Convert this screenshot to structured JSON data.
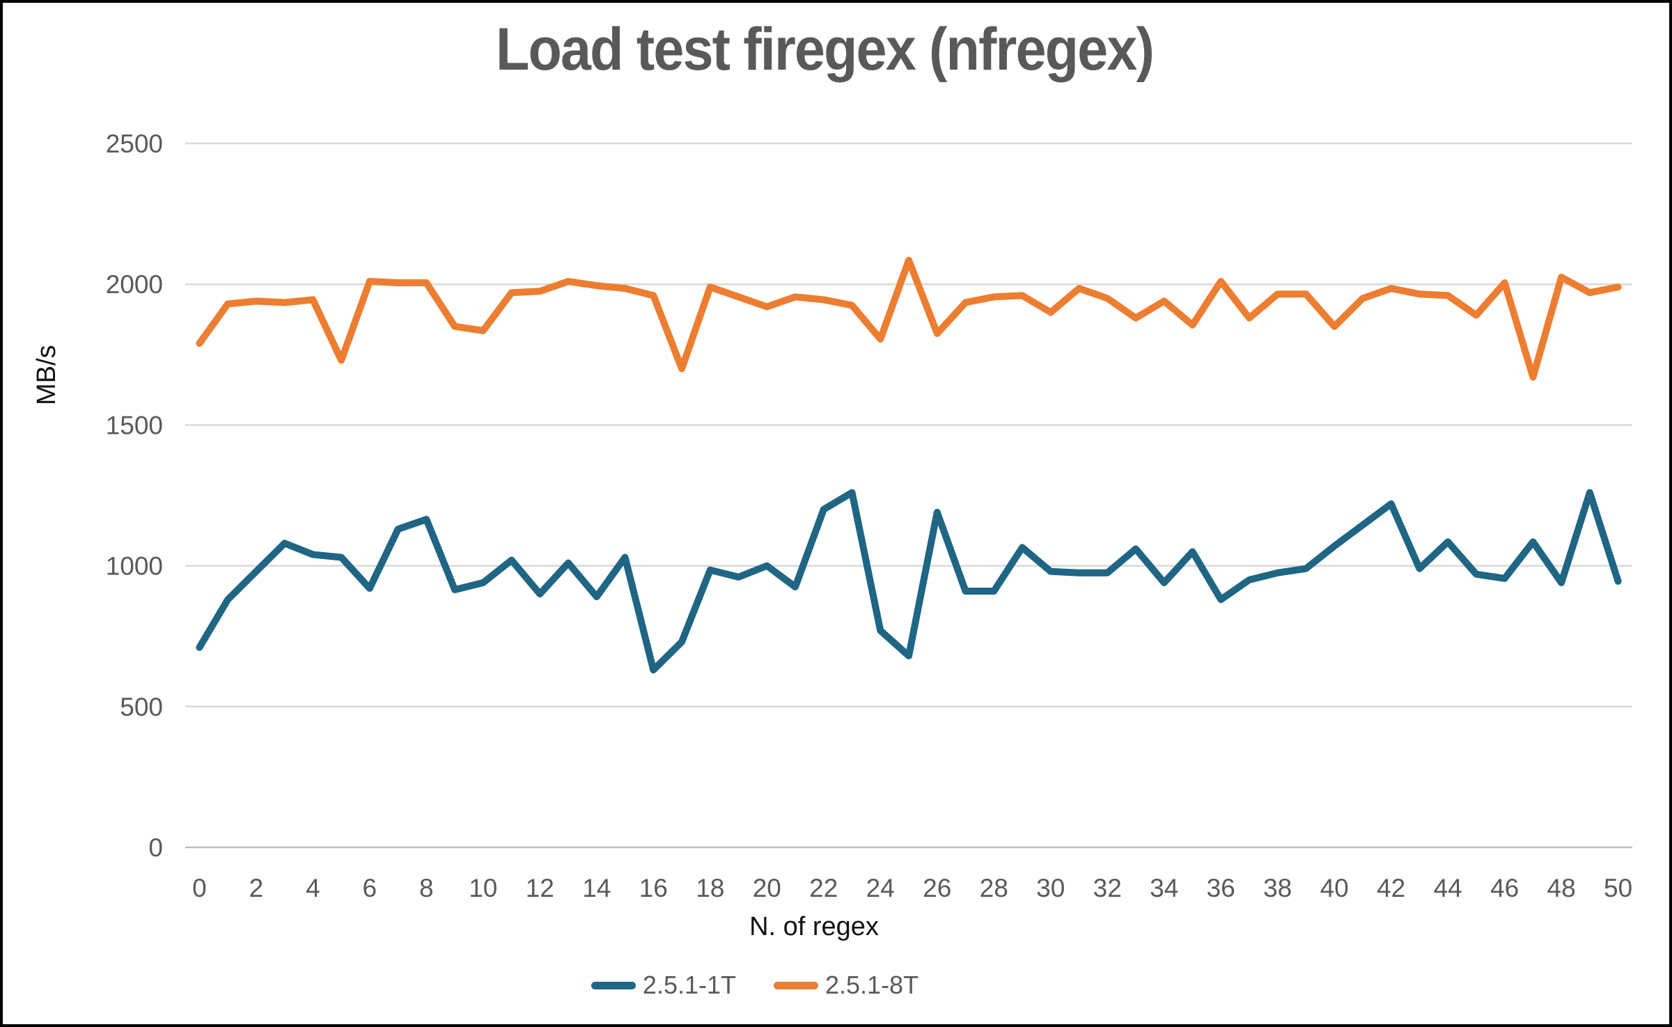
{
  "chart": {
    "title": "Load test firegex (nfregex)",
    "y_axis": {
      "title": "MB/s",
      "ticks": [
        0,
        500,
        1000,
        1500,
        2000,
        2500
      ]
    },
    "x_axis": {
      "title": "N. of regex",
      "tick_labels": [
        0,
        2,
        4,
        6,
        8,
        10,
        12,
        14,
        16,
        18,
        20,
        22,
        24,
        26,
        28,
        30,
        32,
        34,
        36,
        38,
        40,
        42,
        44,
        46,
        48,
        50
      ]
    },
    "legend": {
      "items": [
        "2.5.1-1T",
        "2.5.1-8T"
      ]
    },
    "colors": {
      "series1": "#1F6584",
      "series2": "#ED7D31",
      "gridline": "#D9D9D9",
      "axis_line": "#BFBFBF",
      "tick_text": "#595959",
      "title_text": "#595959",
      "axis_title_text": "#111111"
    }
  },
  "chart_data": {
    "type": "line",
    "title": "Load test firegex (nfregex)",
    "xlabel": "N. of regex",
    "ylabel": "MB/s",
    "ylim": [
      0,
      2500
    ],
    "y_gridline_step": 500,
    "grid": true,
    "legend_position": "bottom",
    "x": [
      0,
      1,
      2,
      3,
      4,
      5,
      6,
      7,
      8,
      9,
      10,
      11,
      12,
      13,
      14,
      15,
      16,
      17,
      18,
      19,
      20,
      21,
      22,
      23,
      24,
      25,
      26,
      27,
      28,
      29,
      30,
      31,
      32,
      33,
      34,
      35,
      36,
      37,
      38,
      39,
      40,
      41,
      42,
      43,
      44,
      45,
      46,
      47,
      48,
      49,
      50
    ],
    "series": [
      {
        "name": "2.5.1-1T",
        "color": "#1F6584",
        "values": [
          710,
          880,
          980,
          1080,
          1040,
          1030,
          920,
          1130,
          1165,
          915,
          940,
          1020,
          900,
          1010,
          890,
          1030,
          630,
          730,
          985,
          960,
          1000,
          925,
          1200,
          1260,
          770,
          680,
          1190,
          910,
          910,
          1065,
          980,
          975,
          975,
          1060,
          940,
          1050,
          880,
          950,
          975,
          990,
          1070,
          1145,
          1220,
          990,
          1085,
          970,
          955,
          1085,
          940,
          1260,
          945
        ]
      },
      {
        "name": "2.5.1-8T",
        "color": "#ED7D31",
        "values": [
          1790,
          1930,
          1940,
          1935,
          1945,
          1730,
          2010,
          2005,
          2005,
          1850,
          1835,
          1970,
          1975,
          2010,
          1995,
          1985,
          1960,
          1700,
          1990,
          1955,
          1920,
          1955,
          1945,
          1925,
          1805,
          2085,
          1825,
          1935,
          1955,
          1960,
          1900,
          1985,
          1950,
          1880,
          1940,
          1855,
          2010,
          1880,
          1965,
          1965,
          1850,
          1950,
          1985,
          1965,
          1960,
          1890,
          2005,
          1670,
          2025,
          1970,
          1990
        ]
      }
    ]
  }
}
